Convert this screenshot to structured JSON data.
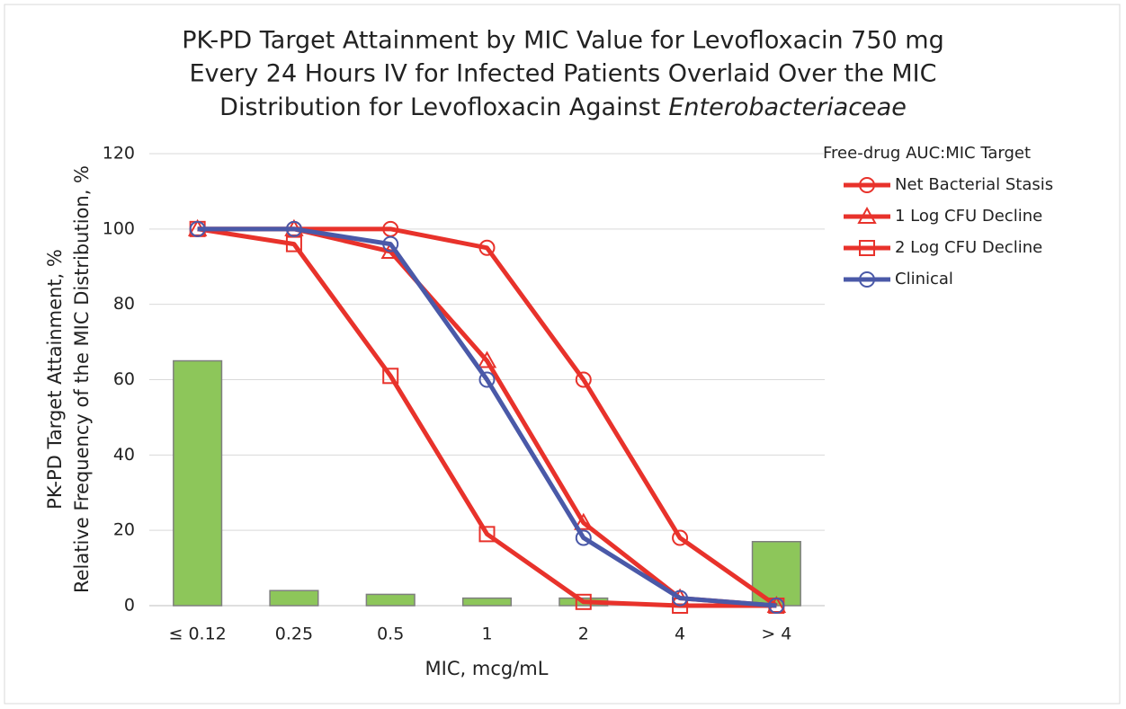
{
  "chart_data": {
    "type": "combo",
    "title": [
      "PK-PD Target Attainment by MIC Value for Levofloxacin 750 mg",
      "Every 24 Hours IV for Infected Patients Overlaid Over the MIC",
      "Distribution for Levofloxacin Against"
    ],
    "title_italic": "Enterobacteriaceae",
    "xlabel": "MIC, mcg/mL",
    "ylabel": [
      "PK-PD Target Attainment, %",
      "Relative Frequency of the MIC Distribution, %"
    ],
    "legend_title": "Free-drug AUC:MIC Target",
    "legend_position": "right",
    "categories": [
      "≤ 0.12",
      "0.25",
      "0.5",
      "1",
      "2",
      "4",
      "> 4"
    ],
    "series": [
      {
        "type": "bar",
        "color": "#8dc65a",
        "values": [
          65,
          4,
          3,
          2,
          2,
          0,
          17
        ]
      },
      {
        "type": "line",
        "name": "Net Bacterial Stasis",
        "color": "#e8322b",
        "marker": "circle",
        "values": [
          100,
          100,
          100,
          95,
          60,
          18,
          0
        ]
      },
      {
        "type": "line",
        "name": "1 Log CFU Decline",
        "color": "#e8322b",
        "marker": "triangle",
        "values": [
          100,
          100,
          94,
          65,
          22,
          2,
          0
        ]
      },
      {
        "type": "line",
        "name": "2 Log CFU Decline",
        "color": "#e8322b",
        "marker": "square",
        "values": [
          100,
          96,
          61,
          19,
          1,
          0,
          0
        ]
      },
      {
        "type": "line",
        "name": "Clinical",
        "color": "#4a59a8",
        "marker": "circle",
        "values": [
          100,
          100,
          96,
          60,
          18,
          2,
          0
        ]
      }
    ],
    "ylim": [
      0,
      120
    ],
    "yticks": [
      0,
      20,
      40,
      60,
      80,
      100,
      120
    ],
    "grid": true
  }
}
